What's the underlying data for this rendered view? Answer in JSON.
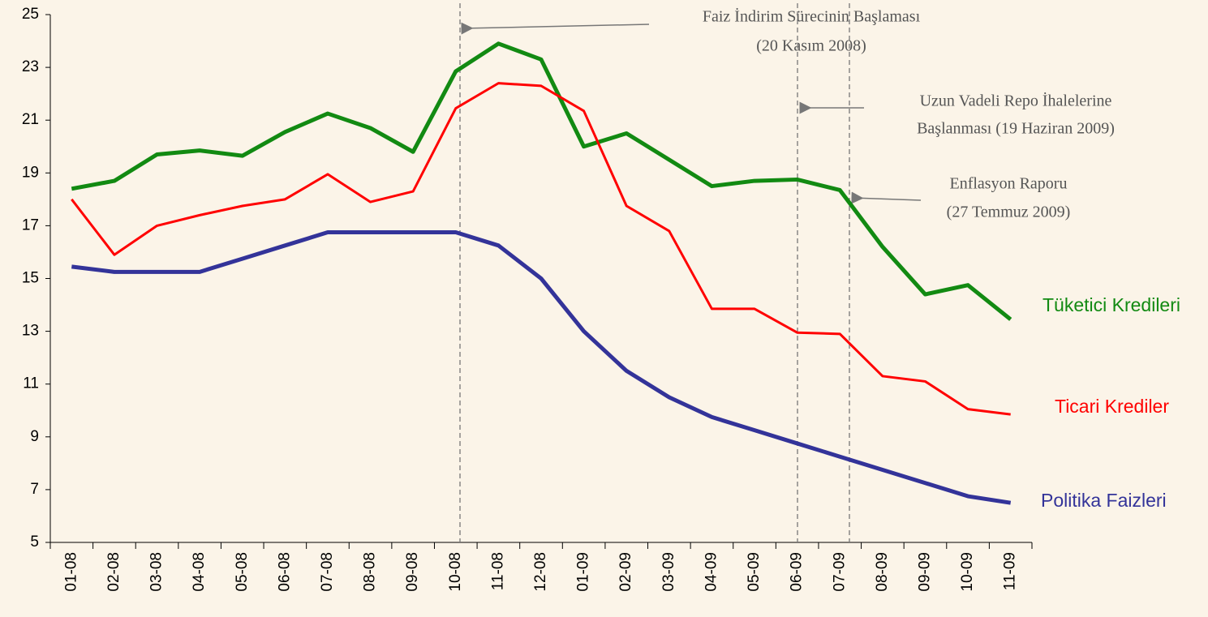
{
  "chart_data": {
    "type": "line",
    "categories": [
      "01-08",
      "02-08",
      "03-08",
      "04-08",
      "05-08",
      "06-08",
      "07-08",
      "08-08",
      "09-08",
      "10-08",
      "11-08",
      "12-08",
      "01-09",
      "02-09",
      "03-09",
      "04-09",
      "05-09",
      "06-09",
      "07-09",
      "08-09",
      "09-09",
      "10-09",
      "11-09"
    ],
    "series": [
      {
        "name": "Tüketici Kredileri",
        "color": "#128a12",
        "values": [
          18.4,
          18.7,
          19.7,
          19.85,
          19.65,
          20.55,
          21.25,
          20.7,
          19.8,
          22.85,
          23.9,
          23.3,
          20.0,
          20.5,
          19.5,
          18.5,
          18.7,
          18.75,
          18.35,
          16.2,
          14.4,
          14.75,
          13.45
        ]
      },
      {
        "name": "Ticari Krediler",
        "color": "#ff0000",
        "values": [
          18.0,
          15.9,
          17.0,
          17.4,
          17.75,
          18.0,
          18.95,
          17.9,
          18.3,
          21.45,
          22.4,
          22.3,
          21.35,
          17.75,
          16.8,
          13.85,
          13.85,
          12.95,
          12.9,
          11.3,
          11.1,
          10.05,
          9.85
        ]
      },
      {
        "name": "Politika Faizleri",
        "color": "#333399",
        "values": [
          15.45,
          15.25,
          15.25,
          15.25,
          15.75,
          16.25,
          16.75,
          16.75,
          16.75,
          16.75,
          16.25,
          15.0,
          13.0,
          11.5,
          10.5,
          9.75,
          9.25,
          8.75,
          8.25,
          7.75,
          7.25,
          6.75,
          6.5
        ]
      }
    ],
    "annotations": [
      [
        "Faiz İndirim Sürecinin Başlaması",
        "(20 Kasım 2008)"
      ],
      [
        "Uzun Vadeli Repo İhalelerine",
        "Başlanması (19 Haziran 2009)"
      ],
      [
        "Enflasyon Raporu",
        "(27 Temmuz 2009)"
      ]
    ],
    "ylim": [
      5,
      25
    ],
    "yticks": [
      5,
      7,
      9,
      11,
      13,
      15,
      17,
      19,
      21,
      23,
      25
    ]
  }
}
